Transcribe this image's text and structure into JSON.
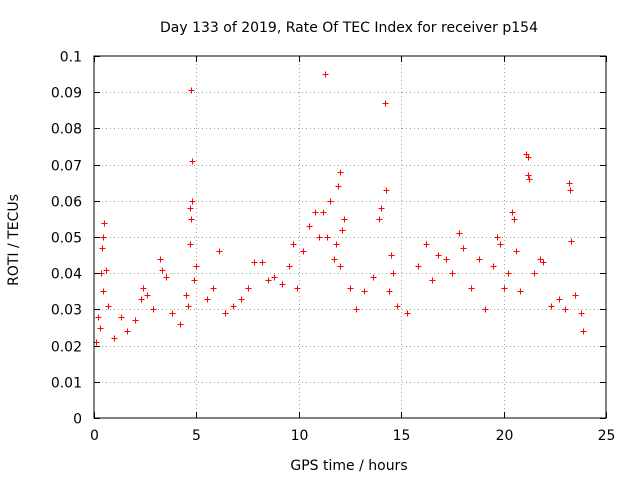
{
  "chart_data": {
    "type": "scatter",
    "title": "Day 133 of 2019, Rate Of TEC Index for receiver p154",
    "xlabel": "GPS time / hours",
    "ylabel": "ROTI / TECUs",
    "xlim": [
      0,
      25
    ],
    "ylim": [
      0,
      0.1
    ],
    "xticks": [
      0,
      5,
      10,
      15,
      20,
      25
    ],
    "xtick_labels": [
      "0",
      "5",
      "10",
      "15",
      "20",
      "25"
    ],
    "yticks": [
      0,
      0.01,
      0.02,
      0.03,
      0.04,
      0.05,
      0.06,
      0.07,
      0.08,
      0.09,
      0.1
    ],
    "ytick_labels": [
      "0",
      "0.01",
      "0.02",
      "0.03",
      "0.04",
      "0.05",
      "0.06",
      "0.07",
      "0.08",
      "0.09",
      "0.1"
    ],
    "grid": true,
    "marker": "+",
    "marker_color": "#ff0000",
    "series": [
      {
        "name": "ROTI",
        "points": [
          [
            0.1,
            0.021
          ],
          [
            0.2,
            0.028
          ],
          [
            0.35,
            0.04
          ],
          [
            0.4,
            0.047
          ],
          [
            0.45,
            0.05
          ],
          [
            0.5,
            0.054
          ],
          [
            0.45,
            0.035
          ],
          [
            0.6,
            0.041
          ],
          [
            0.7,
            0.031
          ],
          [
            0.3,
            0.025
          ],
          [
            1.0,
            0.022
          ],
          [
            1.3,
            0.028
          ],
          [
            1.6,
            0.024
          ],
          [
            2.0,
            0.027
          ],
          [
            2.3,
            0.033
          ],
          [
            2.4,
            0.036
          ],
          [
            2.6,
            0.034
          ],
          [
            2.9,
            0.03
          ],
          [
            3.2,
            0.044
          ],
          [
            3.3,
            0.041
          ],
          [
            3.5,
            0.039
          ],
          [
            3.8,
            0.029
          ],
          [
            4.2,
            0.026
          ],
          [
            4.5,
            0.034
          ],
          [
            4.6,
            0.031
          ],
          [
            4.7,
            0.048
          ],
          [
            4.75,
            0.055
          ],
          [
            4.7,
            0.058
          ],
          [
            4.8,
            0.06
          ],
          [
            4.75,
            0.0905
          ],
          [
            4.8,
            0.071
          ],
          [
            4.9,
            0.038
          ],
          [
            5.0,
            0.042
          ],
          [
            5.5,
            0.033
          ],
          [
            5.8,
            0.036
          ],
          [
            6.1,
            0.046
          ],
          [
            6.4,
            0.029
          ],
          [
            6.8,
            0.031
          ],
          [
            7.2,
            0.033
          ],
          [
            7.5,
            0.036
          ],
          [
            7.8,
            0.043
          ],
          [
            8.2,
            0.043
          ],
          [
            8.5,
            0.038
          ],
          [
            8.8,
            0.039
          ],
          [
            9.2,
            0.037
          ],
          [
            9.5,
            0.042
          ],
          [
            9.7,
            0.048
          ],
          [
            9.9,
            0.036
          ],
          [
            10.2,
            0.046
          ],
          [
            10.5,
            0.053
          ],
          [
            10.8,
            0.057
          ],
          [
            11.0,
            0.05
          ],
          [
            11.2,
            0.057
          ],
          [
            11.3,
            0.095
          ],
          [
            11.4,
            0.05
          ],
          [
            11.5,
            0.06
          ],
          [
            11.7,
            0.044
          ],
          [
            11.8,
            0.048
          ],
          [
            11.9,
            0.064
          ],
          [
            12.0,
            0.068
          ],
          [
            12.1,
            0.052
          ],
          [
            12.2,
            0.055
          ],
          [
            12.0,
            0.042
          ],
          [
            12.5,
            0.036
          ],
          [
            12.8,
            0.03
          ],
          [
            13.2,
            0.035
          ],
          [
            13.6,
            0.039
          ],
          [
            13.9,
            0.055
          ],
          [
            14.0,
            0.058
          ],
          [
            14.2,
            0.087
          ],
          [
            14.25,
            0.063
          ],
          [
            14.5,
            0.045
          ],
          [
            14.6,
            0.04
          ],
          [
            14.4,
            0.035
          ],
          [
            14.8,
            0.031
          ],
          [
            15.3,
            0.029
          ],
          [
            15.8,
            0.042
          ],
          [
            16.2,
            0.048
          ],
          [
            16.5,
            0.038
          ],
          [
            16.8,
            0.045
          ],
          [
            17.2,
            0.044
          ],
          [
            17.5,
            0.04
          ],
          [
            17.8,
            0.051
          ],
          [
            18.0,
            0.047
          ],
          [
            18.4,
            0.036
          ],
          [
            18.8,
            0.044
          ],
          [
            19.1,
            0.03
          ],
          [
            19.5,
            0.042
          ],
          [
            19.7,
            0.05
          ],
          [
            19.8,
            0.048
          ],
          [
            20.0,
            0.036
          ],
          [
            20.2,
            0.04
          ],
          [
            20.4,
            0.057
          ],
          [
            20.5,
            0.055
          ],
          [
            20.6,
            0.046
          ],
          [
            20.8,
            0.035
          ],
          [
            21.1,
            0.073
          ],
          [
            21.2,
            0.072
          ],
          [
            21.2,
            0.067
          ],
          [
            21.25,
            0.066
          ],
          [
            21.5,
            0.04
          ],
          [
            21.8,
            0.044
          ],
          [
            21.9,
            0.043
          ],
          [
            22.3,
            0.031
          ],
          [
            22.7,
            0.033
          ],
          [
            23.0,
            0.03
          ],
          [
            23.2,
            0.065
          ],
          [
            23.25,
            0.063
          ],
          [
            23.3,
            0.049
          ],
          [
            23.5,
            0.034
          ],
          [
            23.8,
            0.029
          ],
          [
            23.9,
            0.024
          ]
        ]
      }
    ]
  }
}
